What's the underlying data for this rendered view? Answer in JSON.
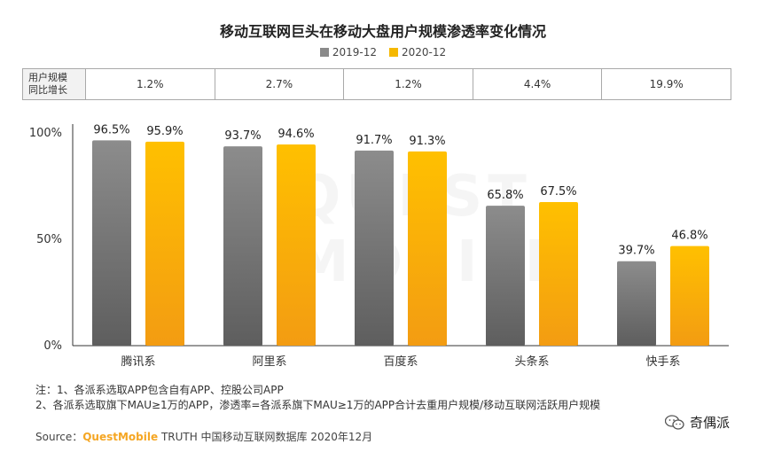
{
  "chart_data": {
    "type": "bar",
    "title": "移动互联网巨头在移动大盘用户规模渗透率变化情况",
    "categories": [
      "腾讯系",
      "阿里系",
      "百度系",
      "头条系",
      "快手系"
    ],
    "series": [
      {
        "name": "2019-12",
        "values": [
          96.5,
          93.7,
          91.7,
          65.8,
          39.7
        ],
        "color": "#8a8a8a"
      },
      {
        "name": "2020-12",
        "values": [
          95.9,
          94.6,
          91.3,
          67.5,
          46.8
        ],
        "color": "#f5b800"
      }
    ],
    "value_labels": [
      [
        "96.5%",
        "93.7%",
        "91.7%",
        "65.8%",
        "39.7%"
      ],
      [
        "95.9%",
        "94.6%",
        "91.3%",
        "67.5%",
        "46.8%"
      ]
    ],
    "y_ticks": [
      "0%",
      "50%",
      "100%"
    ],
    "ylim": [
      0,
      100
    ],
    "legend_position": "top-center",
    "grid": false
  },
  "growth_table": {
    "header_line1": "用户规模",
    "header_line2": "同比增长",
    "values": [
      "1.2%",
      "2.7%",
      "1.2%",
      "4.4%",
      "19.9%"
    ]
  },
  "notes": {
    "line1": "注：1、各派系选取APP包含自有APP、控股公司APP",
    "line2": "2、各派系选取旗下MAU≥1万的APP，渗透率=各派系旗下MAU≥1万的APP合计去重用户规模/移动互联网活跃用户规模"
  },
  "source": {
    "prefix": "Source：",
    "brand": "QuestMobile",
    "suffix": " TRUTH 中国移动互联网数据库 2020年12月"
  },
  "wechat_badge": {
    "label": "奇偶派"
  },
  "watermark": "QUEST MOBILE"
}
